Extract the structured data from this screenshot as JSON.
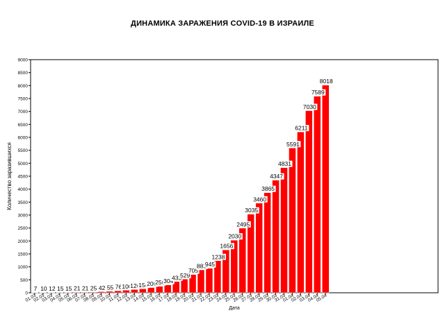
{
  "chart_data": {
    "type": "bar",
    "title": "ДИНАМИКА ЗАРАЖЕНИЯ COVID-19 В ИЗРАИЛЕ",
    "xlabel": "Дата",
    "ylabel": "Количество заразившихся",
    "categories": [
      "01.03",
      "02.03",
      "03.03",
      "04.03",
      "05.03",
      "06.03",
      "07.03",
      "08.03",
      "09.03",
      "10.03",
      "11.03",
      "12.03",
      "13.03",
      "14.03",
      "15.03",
      "16.03",
      "17.03",
      "18.03",
      "19.03",
      "20.03",
      "21.03",
      "22.03",
      "23.03",
      "24.03",
      "25.03",
      "26.03",
      "27.03",
      "28.03",
      "29.03",
      "30.03",
      "31.03",
      "01.04",
      "02.04",
      "03.04",
      "04.04",
      "05.04"
    ],
    "values": [
      7,
      10,
      12,
      15,
      15,
      21,
      21,
      25,
      42,
      55,
      76,
      100,
      126,
      154,
      200,
      250,
      304,
      433,
      529,
      705,
      883,
      945,
      1238,
      1656,
      2030,
      2495,
      3035,
      3460,
      3865,
      4347,
      4831,
      5591,
      6211,
      7030,
      7589,
      8018
    ],
    "ylim": [
      0,
      9000
    ],
    "yticks": [
      0,
      500,
      1000,
      1500,
      2000,
      2500,
      3000,
      3500,
      4000,
      4500,
      5000,
      5500,
      6000,
      6500,
      7000,
      7500,
      8000,
      8500,
      9000
    ],
    "grid": false,
    "legend": "none",
    "bar_color": "#ff0000",
    "axis_color": "#000000"
  }
}
